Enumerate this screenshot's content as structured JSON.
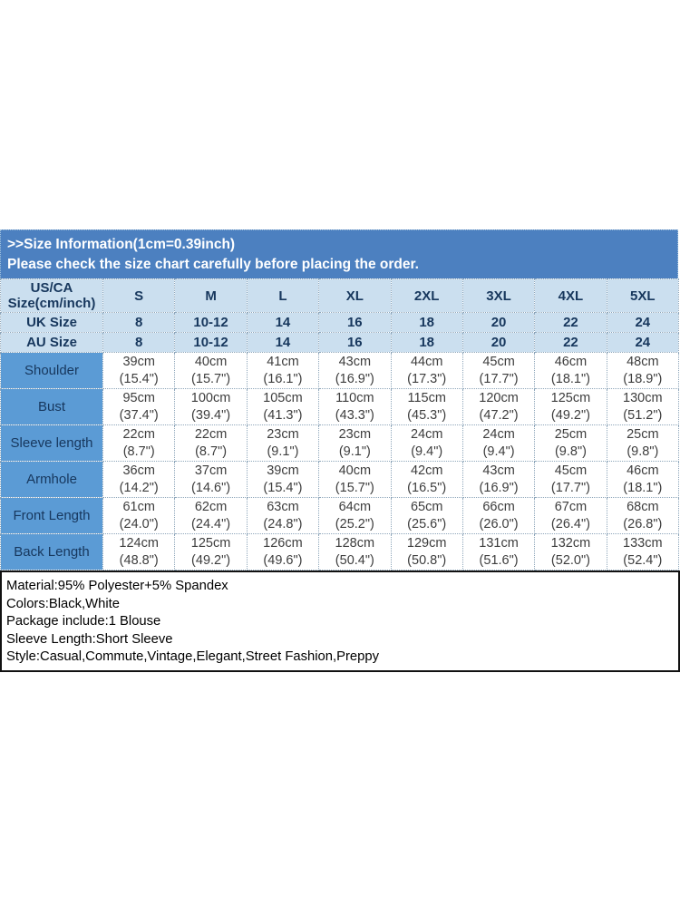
{
  "banner": {
    "title": ">>Size Information(1cm=0.39inch)",
    "subtitle": "Please check the size chart carefully before placing the order."
  },
  "table": {
    "corner": {
      "line1": "US/CA",
      "line2": "Size(cm/inch)"
    },
    "columns": [
      "S",
      "M",
      "L",
      "XL",
      "2XL",
      "3XL",
      "4XL",
      "5XL"
    ],
    "region_rows": [
      {
        "label": "UK Size",
        "values": [
          "8",
          "10-12",
          "14",
          "16",
          "18",
          "20",
          "22",
          "24"
        ]
      },
      {
        "label": "AU Size",
        "values": [
          "8",
          "10-12",
          "14",
          "16",
          "18",
          "20",
          "22",
          "24"
        ]
      }
    ],
    "measurement_rows": [
      {
        "label": "Shoulder",
        "values": [
          {
            "cm": "39cm",
            "inch": "(15.4\")"
          },
          {
            "cm": "40cm",
            "inch": "(15.7\")"
          },
          {
            "cm": "41cm",
            "inch": "(16.1\")"
          },
          {
            "cm": "43cm",
            "inch": "(16.9\")"
          },
          {
            "cm": "44cm",
            "inch": "(17.3\")"
          },
          {
            "cm": "45cm",
            "inch": "(17.7\")"
          },
          {
            "cm": "46cm",
            "inch": "(18.1\")"
          },
          {
            "cm": "48cm",
            "inch": "(18.9\")"
          }
        ]
      },
      {
        "label": "Bust",
        "values": [
          {
            "cm": "95cm",
            "inch": "(37.4\")"
          },
          {
            "cm": "100cm",
            "inch": "(39.4\")"
          },
          {
            "cm": "105cm",
            "inch": "(41.3\")"
          },
          {
            "cm": "110cm",
            "inch": "(43.3\")"
          },
          {
            "cm": "115cm",
            "inch": "(45.3\")"
          },
          {
            "cm": "120cm",
            "inch": "(47.2\")"
          },
          {
            "cm": "125cm",
            "inch": "(49.2\")"
          },
          {
            "cm": "130cm",
            "inch": "(51.2\")"
          }
        ]
      },
      {
        "label": "Sleeve length",
        "values": [
          {
            "cm": "22cm",
            "inch": "(8.7\")"
          },
          {
            "cm": "22cm",
            "inch": "(8.7\")"
          },
          {
            "cm": "23cm",
            "inch": "(9.1\")"
          },
          {
            "cm": "23cm",
            "inch": "(9.1\")"
          },
          {
            "cm": "24cm",
            "inch": "(9.4\")"
          },
          {
            "cm": "24cm",
            "inch": "(9.4\")"
          },
          {
            "cm": "25cm",
            "inch": "(9.8\")"
          },
          {
            "cm": "25cm",
            "inch": "(9.8\")"
          }
        ]
      },
      {
        "label": "Armhole",
        "values": [
          {
            "cm": "36cm",
            "inch": "(14.2\")"
          },
          {
            "cm": "37cm",
            "inch": "(14.6\")"
          },
          {
            "cm": "39cm",
            "inch": "(15.4\")"
          },
          {
            "cm": "40cm",
            "inch": "(15.7\")"
          },
          {
            "cm": "42cm",
            "inch": "(16.5\")"
          },
          {
            "cm": "43cm",
            "inch": "(16.9\")"
          },
          {
            "cm": "45cm",
            "inch": "(17.7\")"
          },
          {
            "cm": "46cm",
            "inch": "(18.1\")"
          }
        ]
      },
      {
        "label": "Front Length",
        "values": [
          {
            "cm": "61cm",
            "inch": "(24.0\")"
          },
          {
            "cm": "62cm",
            "inch": "(24.4\")"
          },
          {
            "cm": "63cm",
            "inch": "(24.8\")"
          },
          {
            "cm": "64cm",
            "inch": "(25.2\")"
          },
          {
            "cm": "65cm",
            "inch": "(25.6\")"
          },
          {
            "cm": "66cm",
            "inch": "(26.0\")"
          },
          {
            "cm": "67cm",
            "inch": "(26.4\")"
          },
          {
            "cm": "68cm",
            "inch": "(26.8\")"
          }
        ]
      },
      {
        "label": "Back Length",
        "values": [
          {
            "cm": "124cm",
            "inch": "(48.8\")"
          },
          {
            "cm": "125cm",
            "inch": "(49.2\")"
          },
          {
            "cm": "126cm",
            "inch": "(49.6\")"
          },
          {
            "cm": "128cm",
            "inch": "(50.4\")"
          },
          {
            "cm": "129cm",
            "inch": "(50.8\")"
          },
          {
            "cm": "131cm",
            "inch": "(51.6\")"
          },
          {
            "cm": "132cm",
            "inch": "(52.0\")"
          },
          {
            "cm": "133cm",
            "inch": "(52.4\")"
          }
        ]
      }
    ]
  },
  "details": {
    "lines": [
      "Material:95% Polyester+5% Spandex",
      "Colors:Black,White",
      "Package include:1 Blouse",
      "Sleeve Length:Short Sleeve",
      "Style:Casual,Commute,Vintage,Elegant,Street Fashion,Preppy"
    ]
  },
  "colors": {
    "banner_bg": "#4c80c0",
    "header_bg": "#cbdfef",
    "label_col_bg": "#5b9bd5",
    "heading_text": "#17375d",
    "value_text": "#3d3d3d",
    "details_border": "#111111"
  }
}
